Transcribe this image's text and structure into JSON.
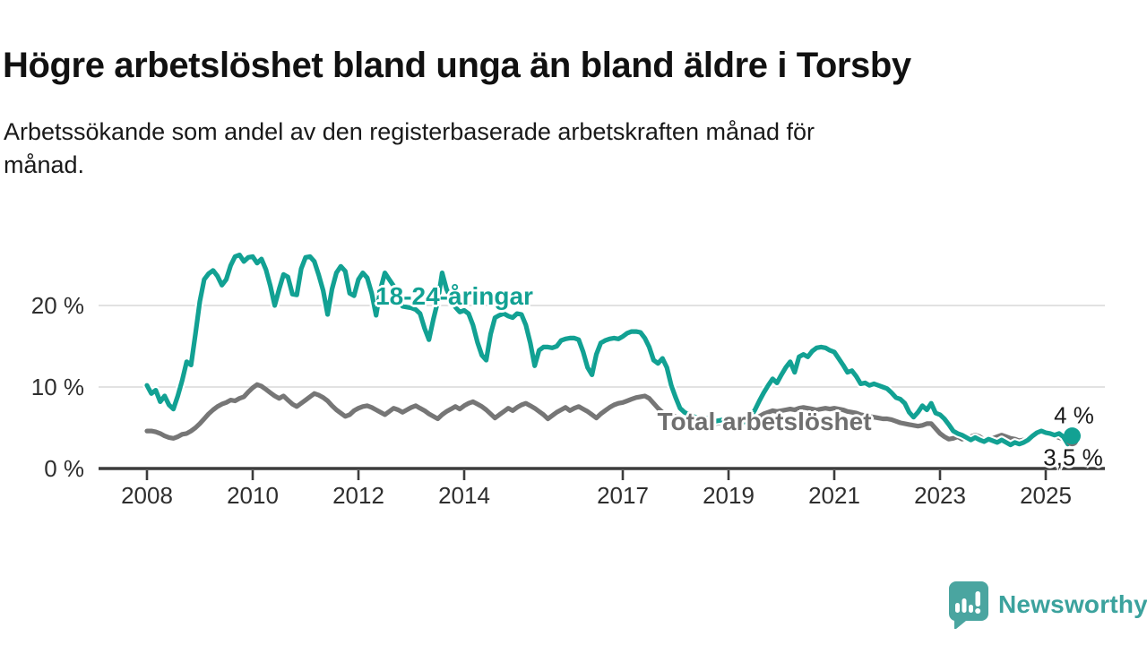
{
  "title": "Högre arbetslöshet bland unga än bland äldre i Torsby",
  "subtitle": {
    "line1": "Arbetssökande som andel av den registerbaserade arbetskraften månad för",
    "line2": "månad."
  },
  "branding": {
    "name": "Newsworthy",
    "icon": "newsworthy-speech-bubble-bar-chart-icon",
    "bubble_color": "#4aa5a0",
    "text_color": "#3ba29d"
  },
  "chart_data": {
    "type": "line",
    "frequency": "monthly",
    "x_start": "2008-01",
    "x_end": "2025-07",
    "unit": "%",
    "ylim": [
      0,
      27
    ],
    "grid": "horizontal",
    "yticks": [
      {
        "value": 0,
        "label": "0 %"
      },
      {
        "value": 10,
        "label": "10 %"
      },
      {
        "value": 20,
        "label": "20 %"
      }
    ],
    "xticks": [
      2008,
      2010,
      2012,
      2014,
      2017,
      2019,
      2021,
      2023,
      2025
    ],
    "colors": {
      "axis": "#3c3c3c",
      "gridline": "#d9d9d9"
    },
    "series": [
      {
        "name": "Total arbetslöshet",
        "color": "#767676",
        "label_color": "#6f6f6f",
        "end_value_label": "3,5 %",
        "values": [
          4.6,
          4.6,
          4.5,
          4.3,
          4.0,
          3.8,
          3.7,
          3.9,
          4.2,
          4.3,
          4.6,
          5.0,
          5.5,
          6.1,
          6.7,
          7.2,
          7.6,
          7.9,
          8.1,
          8.4,
          8.3,
          8.6,
          8.8,
          9.4,
          9.9,
          10.3,
          10.1,
          9.7,
          9.3,
          8.9,
          8.6,
          8.9,
          8.4,
          7.9,
          7.6,
          8.0,
          8.4,
          8.8,
          9.2,
          9.0,
          8.7,
          8.3,
          7.7,
          7.2,
          6.8,
          6.4,
          6.6,
          7.1,
          7.4,
          7.6,
          7.7,
          7.5,
          7.2,
          6.9,
          6.6,
          7.0,
          7.4,
          7.2,
          6.9,
          7.2,
          7.5,
          7.7,
          7.4,
          7.1,
          6.7,
          6.4,
          6.1,
          6.6,
          7.0,
          7.3,
          7.6,
          7.3,
          7.7,
          8.0,
          8.2,
          7.9,
          7.6,
          7.2,
          6.7,
          6.2,
          6.6,
          7.0,
          7.4,
          7.1,
          7.5,
          7.8,
          8.0,
          7.7,
          7.4,
          7.0,
          6.6,
          6.1,
          6.5,
          6.9,
          7.2,
          7.5,
          7.1,
          7.4,
          7.6,
          7.3,
          7.0,
          6.6,
          6.2,
          6.7,
          7.1,
          7.5,
          7.8,
          8.0,
          8.1,
          8.3,
          8.5,
          8.7,
          8.8,
          8.9,
          8.6,
          8.0,
          7.4,
          6.9,
          6.6,
          6.5,
          6.4,
          6.3,
          6.1,
          5.9,
          5.7,
          5.5,
          5.4,
          5.5,
          5.6,
          5.5,
          5.6,
          5.7,
          5.8,
          5.7,
          5.6,
          5.5,
          5.6,
          5.8,
          6.1,
          6.4,
          6.7,
          6.9,
          7.1,
          7.0,
          7.1,
          7.2,
          7.3,
          7.2,
          7.4,
          7.5,
          7.4,
          7.3,
          7.2,
          7.3,
          7.4,
          7.3,
          7.4,
          7.3,
          7.2,
          7.0,
          6.9,
          6.8,
          6.6,
          6.5,
          6.4,
          6.3,
          6.2,
          6.1,
          6.1,
          6.0,
          5.8,
          5.6,
          5.5,
          5.4,
          5.3,
          5.2,
          5.3,
          5.5,
          5.5,
          4.9,
          4.3,
          3.9,
          3.6,
          3.7,
          3.9,
          3.6,
          3.8,
          3.9,
          4.1,
          3.9,
          3.5,
          3.6,
          3.7,
          3.9,
          4.1,
          3.9,
          3.7,
          3.6,
          3.4,
          3.5,
          3.6,
          4.0,
          4.3,
          4.4,
          4.2,
          4.1,
          4.0,
          3.8,
          3.6,
          3.2,
          3.5
        ]
      },
      {
        "name": "18-24-åringar",
        "color": "#12a193",
        "label_color": "#12a193",
        "end_value_label": "4 %",
        "values": [
          10.2,
          9.2,
          9.6,
          8.2,
          8.9,
          7.8,
          7.3,
          8.9,
          10.8,
          13.1,
          12.7,
          16.5,
          20.5,
          23.2,
          23.9,
          24.3,
          23.6,
          22.5,
          23.2,
          24.9,
          26.0,
          26.2,
          25.4,
          25.9,
          26.0,
          25.2,
          25.7,
          24.4,
          22.4,
          20.0,
          22.0,
          23.8,
          23.5,
          21.4,
          21.3,
          24.5,
          25.9,
          26.0,
          25.4,
          23.7,
          21.8,
          18.9,
          22.0,
          24.0,
          24.8,
          24.2,
          21.5,
          21.2,
          23.2,
          24.0,
          23.4,
          21.5,
          18.8,
          22.0,
          24.0,
          23.2,
          22.4,
          20.8,
          19.9,
          19.8,
          19.7,
          19.5,
          19.0,
          17.2,
          15.8,
          18.3,
          20.5,
          24.0,
          22.0,
          20.8,
          19.8,
          19.2,
          19.4,
          19.0,
          17.6,
          15.5,
          13.9,
          13.3,
          16.5,
          18.5,
          18.8,
          19.0,
          18.7,
          18.5,
          19.0,
          18.9,
          17.6,
          15.4,
          12.6,
          14.5,
          14.9,
          14.9,
          14.8,
          15.0,
          15.7,
          15.9,
          16.0,
          16.0,
          15.8,
          14.3,
          12.4,
          11.5,
          14.0,
          15.4,
          15.7,
          15.9,
          16.0,
          15.9,
          16.2,
          16.6,
          16.8,
          16.8,
          16.7,
          16.0,
          14.9,
          13.3,
          12.9,
          13.5,
          12.4,
          10.2,
          8.7,
          7.4,
          6.9,
          6.6,
          6.4,
          6.2,
          6.0,
          6.2,
          6.0,
          5.8,
          5.9,
          6.0,
          6.1,
          5.9,
          5.7,
          5.6,
          5.8,
          6.3,
          7.2,
          8.3,
          9.3,
          10.2,
          11.0,
          10.5,
          11.5,
          12.4,
          13.1,
          11.8,
          13.7,
          14.0,
          13.7,
          14.4,
          14.8,
          14.9,
          14.8,
          14.5,
          14.3,
          13.5,
          12.7,
          11.8,
          12.0,
          11.3,
          10.4,
          10.5,
          10.2,
          10.4,
          10.2,
          10.0,
          9.8,
          9.3,
          8.7,
          8.5,
          8.0,
          6.9,
          6.3,
          6.9,
          7.7,
          7.2,
          8.0,
          6.8,
          6.6,
          6.1,
          5.4,
          4.6,
          4.3,
          4.1,
          3.8,
          3.5,
          3.8,
          3.5,
          3.3,
          3.6,
          3.4,
          3.2,
          3.5,
          3.2,
          2.9,
          3.2,
          3.0,
          3.2,
          3.5,
          4.0,
          4.4,
          4.6,
          4.4,
          4.3,
          4.1,
          4.3,
          3.9,
          3.0,
          4.0
        ]
      }
    ]
  }
}
